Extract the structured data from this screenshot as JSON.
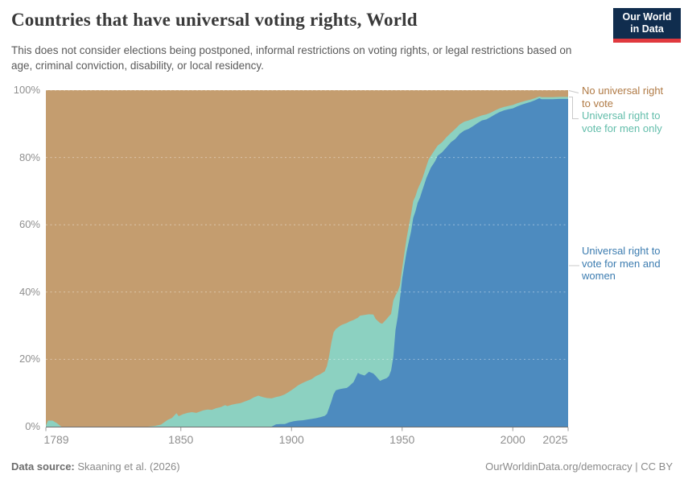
{
  "header": {
    "title": "Countries that have universal voting rights, World",
    "subtitle": "This does not consider elections being postponed, informal restrictions on voting rights, or legal restrictions based on age, criminal conviction, disability, or local residency."
  },
  "logo": {
    "line1": "Our World",
    "line2": "in Data",
    "bg_color": "#102D4E",
    "stripe_color": "#E0393E",
    "text_color": "#ffffff"
  },
  "footer": {
    "source_label": "Data source:",
    "source_value": " Skaaning et al. (2026)",
    "attribution": "OurWorldinData.org/democracy | CC BY"
  },
  "chart_data": {
    "type": "area",
    "stacked": true,
    "unit": "%",
    "title": "Countries that have universal voting rights, World",
    "xlim": [
      1789,
      2025
    ],
    "ylim": [
      0,
      100
    ],
    "x_ticks": [
      1789,
      1850,
      1900,
      1950,
      2000,
      2025
    ],
    "y_ticks": [
      0,
      20,
      40,
      60,
      80,
      100
    ],
    "y_tick_suffix": "%",
    "grid": "dashed horizontal, drawn over areas",
    "gridline_color": "rgba(255,255,255,0.42)",
    "axis_line_color": "#6e6e6e",
    "tick_color": "#9a9a9a",
    "axis_label_color": "#8f8f8f",
    "legend_position": "right, color-coded labels with connector lines",
    "x": [
      1789,
      1790,
      1792,
      1794,
      1796,
      1800,
      1805,
      1810,
      1815,
      1820,
      1825,
      1830,
      1835,
      1838,
      1841,
      1844,
      1846,
      1848,
      1849,
      1851,
      1853,
      1855,
      1857,
      1860,
      1862,
      1864,
      1866,
      1868,
      1870,
      1871,
      1873,
      1875,
      1877,
      1879,
      1881,
      1883,
      1885,
      1887,
      1889,
      1891,
      1893,
      1895,
      1897,
      1899,
      1901,
      1903,
      1905,
      1907,
      1909,
      1911,
      1913,
      1915,
      1916,
      1917,
      1918,
      1919,
      1920,
      1921,
      1922,
      1923,
      1925,
      1926,
      1928,
      1930,
      1931,
      1933,
      1935,
      1937,
      1938,
      1940,
      1941,
      1943,
      1944,
      1945,
      1946,
      1947,
      1948,
      1949,
      1950,
      1951,
      1952,
      1953,
      1954,
      1955,
      1956,
      1957,
      1958,
      1959,
      1960,
      1961,
      1962,
      1963,
      1964,
      1965,
      1966,
      1967,
      1968,
      1970,
      1972,
      1974,
      1976,
      1978,
      1980,
      1982,
      1984,
      1986,
      1988,
      1990,
      1992,
      1994,
      1996,
      1998,
      2000,
      2002,
      2004,
      2006,
      2008,
      2010,
      2012,
      2013,
      2015,
      2018,
      2021,
      2025
    ],
    "series": [
      {
        "name": "Universal right to vote for men and women",
        "color": "#4D8BBF",
        "label_color": "#3C7CB0",
        "values": [
          0,
          0,
          0,
          0,
          0,
          0,
          0,
          0,
          0,
          0,
          0,
          0,
          0,
          0,
          0,
          0,
          0,
          0,
          0,
          0,
          0,
          0,
          0,
          0,
          0,
          0,
          0,
          0,
          0,
          0,
          0,
          0,
          0,
          0,
          0,
          0,
          0,
          0,
          0,
          0,
          0.7,
          0.8,
          0.8,
          1.3,
          1.6,
          1.8,
          1.9,
          2.1,
          2.3,
          2.5,
          2.8,
          3.2,
          3.8,
          5.6,
          7.5,
          9.6,
          10.8,
          11,
          11.2,
          11.3,
          11.5,
          12,
          13.2,
          16,
          15.6,
          15.2,
          16.3,
          15.8,
          15.1,
          13.6,
          13.9,
          14.4,
          15,
          16.7,
          20.8,
          28.7,
          32.7,
          38,
          44,
          48,
          52,
          55,
          58,
          62,
          64,
          66.5,
          68,
          70,
          72,
          74,
          75.5,
          77,
          78,
          79,
          80.5,
          81,
          81.5,
          83,
          84.5,
          85.5,
          87,
          88,
          88.5,
          89.3,
          90.2,
          91,
          91.3,
          92,
          92.8,
          93.5,
          94,
          94.3,
          94.6,
          95.2,
          95.7,
          96.1,
          96.5,
          97,
          97.6,
          97.3,
          97.3,
          97.3,
          97.4,
          97.4
        ]
      },
      {
        "name": "Universal right to vote for men only",
        "color": "#8CD1C1",
        "label_color": "#62BDAA",
        "values": [
          0.3,
          1.8,
          1.8,
          1.0,
          0,
          0,
          0,
          0,
          0,
          0,
          0,
          0,
          0,
          0.2,
          0.6,
          2.0,
          2.6,
          4.0,
          3.1,
          3.7,
          4.1,
          4.3,
          4.1,
          4.8,
          5.1,
          5.0,
          5.5,
          5.8,
          6.4,
          6.1,
          6.5,
          6.8,
          7.0,
          7.5,
          8.0,
          8.7,
          9.2,
          8.8,
          8.5,
          8.4,
          8.1,
          8.3,
          8.8,
          9.1,
          9.7,
          10.5,
          11.1,
          11.5,
          11.8,
          12.5,
          12.8,
          13.2,
          14.2,
          15.4,
          17.5,
          18.4,
          18.2,
          18.5,
          18.8,
          19.0,
          19.3,
          19.2,
          18.5,
          16.4,
          17.4,
          18.0,
          17.1,
          17.5,
          16.9,
          17.2,
          16.7,
          17.6,
          17.8,
          16.8,
          16.7,
          10.3,
          7.5,
          4.0,
          3.0,
          3.5,
          4.0,
          4.5,
          5.0,
          5.0,
          4.5,
          4.0,
          4.0,
          3.5,
          3.5,
          3.5,
          4.0,
          3.5,
          3.5,
          3.5,
          3.0,
          3.0,
          3.0,
          3.0,
          2.8,
          3.0,
          2.8,
          2.6,
          2.5,
          2.2,
          1.8,
          1.5,
          1.5,
          1.3,
          1.2,
          1.1,
          1.0,
          1.0,
          1.0,
          0.9,
          0.8,
          0.8,
          0.7,
          0.6,
          0.5,
          0.6,
          0.6,
          0.6,
          0.6,
          0.6
        ]
      },
      {
        "name": "No universal right to vote",
        "color": "#C49D6F",
        "label_color": "#B07A45",
        "values": [
          99.7,
          98.2,
          98.2,
          99.0,
          100,
          100,
          100,
          100,
          100,
          100,
          100,
          100,
          100,
          99.8,
          99.4,
          98.0,
          97.4,
          96.0,
          96.9,
          96.3,
          95.9,
          95.7,
          95.9,
          95.2,
          94.9,
          95.0,
          94.5,
          94.2,
          93.6,
          93.9,
          93.5,
          93.2,
          93.0,
          92.5,
          92.0,
          91.3,
          90.8,
          91.2,
          91.5,
          91.6,
          91.2,
          90.9,
          90.4,
          89.6,
          88.7,
          87.7,
          87.0,
          86.4,
          85.9,
          85.0,
          84.4,
          83.6,
          82.0,
          79.0,
          75.0,
          72.0,
          71.0,
          70.5,
          70.0,
          69.7,
          69.2,
          68.8,
          68.3,
          67.6,
          67.0,
          66.8,
          66.6,
          66.7,
          68.0,
          69.2,
          69.4,
          68.0,
          67.2,
          66.5,
          62.5,
          61.0,
          59.8,
          58.0,
          53.0,
          48.5,
          44.0,
          40.5,
          37.0,
          33.0,
          31.5,
          29.5,
          28.0,
          26.5,
          24.5,
          22.5,
          20.5,
          19.5,
          18.5,
          17.5,
          16.5,
          16.0,
          15.5,
          14.0,
          12.7,
          11.5,
          10.2,
          9.4,
          9.0,
          8.5,
          8.0,
          7.5,
          7.2,
          6.7,
          6.0,
          5.4,
          5.0,
          4.7,
          4.4,
          3.9,
          3.5,
          3.1,
          2.8,
          2.4,
          1.9,
          2.1,
          2.1,
          2.1,
          2.0,
          2.0
        ]
      }
    ]
  }
}
